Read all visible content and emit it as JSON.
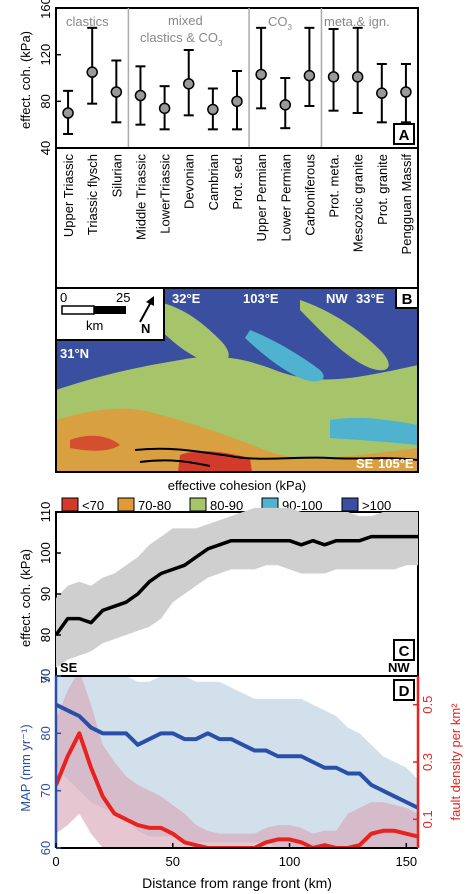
{
  "panel_a": {
    "letter": "A",
    "ylabel": "effect. coh. (kPa)",
    "yticks": [
      "40",
      "80",
      "120",
      "160"
    ],
    "groups": [
      "clastics",
      "mixed",
      "clastics & CO",
      "3",
      "CO",
      "3",
      "meta.& ign."
    ]
  },
  "panel_b": {
    "letter": "B",
    "scale_0": "0",
    "scale_25": "25",
    "scale_unit": "km",
    "north": "N",
    "lon1": "32°E",
    "lon2": "103°E",
    "lon3": "33°E",
    "lon4": "105°E",
    "lat1": "31°N",
    "nw": "NW",
    "se": "SE",
    "legend_title": "effective cohesion (kPa)",
    "legend": [
      {
        "label": "<70",
        "color": "#d33a2c"
      },
      {
        "label": "70-80",
        "color": "#e09a3a"
      },
      {
        "label": "80-90",
        "color": "#a6c46a"
      },
      {
        "label": "90-100",
        "color": "#4fb3cf"
      },
      {
        "label": ">100",
        "color": "#3a4fa0"
      }
    ]
  },
  "panel_c": {
    "letter": "C",
    "ylabel": "effect. coh. (kPa)",
    "yticks": [
      "70",
      "80",
      "90",
      "100",
      "110"
    ],
    "se": "SE",
    "nw": "NW"
  },
  "panel_d": {
    "letter": "D",
    "ylabel_left": "MAP (mm yr⁻¹)",
    "ylabel_right": "fault density per km²",
    "yticks_left": [
      "60",
      "70",
      "80",
      "90"
    ],
    "yticks_right": [
      "0.1",
      "0.3",
      "0.5"
    ],
    "xticks": [
      "0",
      "50",
      "100",
      "150"
    ],
    "xlabel": "Distance from range front (km)"
  },
  "chart_data": [
    {
      "type": "errorbar",
      "panel": "A",
      "categories": [
        "Upper Triassic",
        "Triassic flysch",
        "Silurian",
        "Middle Triassic",
        "LowerTriassic",
        "Devonian",
        "Cambrian",
        "Prot. sed.",
        "Upper Permian",
        "Lower Permian",
        "Carboniferous",
        "Prot. meta.",
        "Mesozoic granite",
        "Prot. granite",
        "Pengguan Massif"
      ],
      "values": [
        70,
        105,
        88,
        85,
        74,
        95,
        73,
        80,
        103,
        77,
        102,
        101,
        101,
        87,
        88
      ],
      "lower": [
        52,
        78,
        62,
        60,
        56,
        68,
        56,
        56,
        74,
        57,
        76,
        72,
        70,
        62,
        62
      ],
      "upper": [
        89,
        143,
        115,
        110,
        93,
        124,
        91,
        106,
        143,
        100,
        143,
        142,
        143,
        112,
        112
      ],
      "ylim": [
        40,
        160
      ],
      "ylabel": "effect. coh. (kPa)"
    },
    {
      "type": "line",
      "panel": "C",
      "x": [
        0,
        5,
        10,
        15,
        20,
        25,
        30,
        35,
        40,
        45,
        50,
        55,
        60,
        65,
        70,
        75,
        80,
        85,
        90,
        95,
        100,
        105,
        110,
        115,
        120,
        125,
        130,
        135,
        140,
        145,
        150,
        155
      ],
      "values": [
        80,
        84,
        84,
        83,
        86,
        87,
        88,
        90,
        93,
        95,
        96,
        97,
        99,
        101,
        102,
        103,
        103,
        103,
        103,
        103,
        103,
        102,
        103,
        102,
        103,
        103,
        103,
        104,
        104,
        104,
        104,
        104
      ],
      "lower": [
        72,
        74,
        75,
        76,
        78,
        79,
        80,
        81,
        82,
        84,
        88,
        90,
        92,
        94,
        95,
        96,
        96,
        96,
        97,
        97,
        96,
        95,
        95,
        95,
        96,
        96,
        96,
        96,
        96,
        96,
        97,
        97
      ],
      "upper": [
        89,
        92,
        93,
        92,
        94,
        95,
        97,
        99,
        102,
        104,
        106,
        106,
        106,
        107,
        108,
        109,
        110,
        111,
        111,
        111,
        111,
        110,
        110,
        110,
        110,
        110,
        109,
        109,
        110,
        110,
        110,
        110
      ],
      "ylim": [
        70,
        110
      ],
      "ylabel": "effect. coh. (kPa)"
    },
    {
      "type": "line",
      "panel": "D",
      "x": [
        0,
        5,
        10,
        15,
        20,
        25,
        30,
        35,
        40,
        45,
        50,
        55,
        60,
        65,
        70,
        75,
        80,
        85,
        90,
        95,
        100,
        105,
        110,
        115,
        120,
        125,
        130,
        135,
        140,
        145,
        150,
        155
      ],
      "series": [
        {
          "axis": "left",
          "color": "#2a4fa8",
          "values": [
            85,
            84,
            83,
            81,
            80,
            80,
            80,
            78,
            79,
            80,
            80,
            79,
            79,
            80,
            79,
            79,
            78,
            77,
            77,
            76,
            76,
            76,
            75,
            74,
            74,
            73,
            73,
            71,
            70,
            69,
            68,
            67
          ],
          "lower": [
            74,
            72,
            70,
            68,
            67,
            66,
            65,
            63,
            62,
            62,
            62,
            61,
            61,
            61,
            61,
            61,
            61,
            61,
            61,
            60,
            60,
            60,
            60,
            60,
            60,
            60,
            60,
            60,
            60,
            60,
            60,
            60
          ],
          "upper": [
            98,
            96,
            94,
            93,
            92,
            91,
            90,
            89,
            89,
            90,
            90,
            90,
            89,
            89,
            89,
            88,
            87,
            86,
            86,
            86,
            86,
            86,
            85,
            84,
            83,
            81,
            80,
            78,
            76,
            75,
            74,
            72
          ]
        },
        {
          "axis": "right",
          "color": "#e8231f",
          "values": [
            0.22,
            0.32,
            0.4,
            0.28,
            0.18,
            0.12,
            0.1,
            0.08,
            0.07,
            0.07,
            0.05,
            0.02,
            0.01,
            0.0,
            0.0,
            0.0,
            0.0,
            0.0,
            0.02,
            0.03,
            0.03,
            0.02,
            0.0,
            0.01,
            0.0,
            0.0,
            0.01,
            0.05,
            0.06,
            0.06,
            0.05,
            0.04
          ],
          "lower": [
            0.05,
            0.08,
            0.12,
            0.05,
            0.0,
            0.0,
            0.0,
            0.0,
            0.0,
            0.0,
            0.0,
            0.0,
            0.0,
            0.0,
            0.0,
            0.0,
            0.0,
            0.0,
            0.0,
            0.0,
            0.0,
            0.0,
            0.0,
            0.0,
            0.0,
            0.0,
            0.0,
            0.0,
            0.0,
            0.0,
            0.0,
            0.0
          ],
          "upper": [
            0.45,
            0.55,
            0.62,
            0.5,
            0.36,
            0.3,
            0.25,
            0.22,
            0.2,
            0.18,
            0.15,
            0.12,
            0.08,
            0.06,
            0.05,
            0.05,
            0.05,
            0.05,
            0.07,
            0.08,
            0.08,
            0.07,
            0.05,
            0.06,
            0.06,
            0.12,
            0.14,
            0.16,
            0.16,
            0.15,
            0.14,
            0.12
          ]
        }
      ],
      "xlim": [
        0,
        155
      ],
      "ylim_left": [
        60,
        90
      ],
      "ylim_right": [
        0,
        0.6
      ],
      "xlabel": "Distance from range front (km)",
      "ylabel_left": "MAP (mm yr⁻¹)",
      "ylabel_right": "fault density per km²"
    }
  ]
}
